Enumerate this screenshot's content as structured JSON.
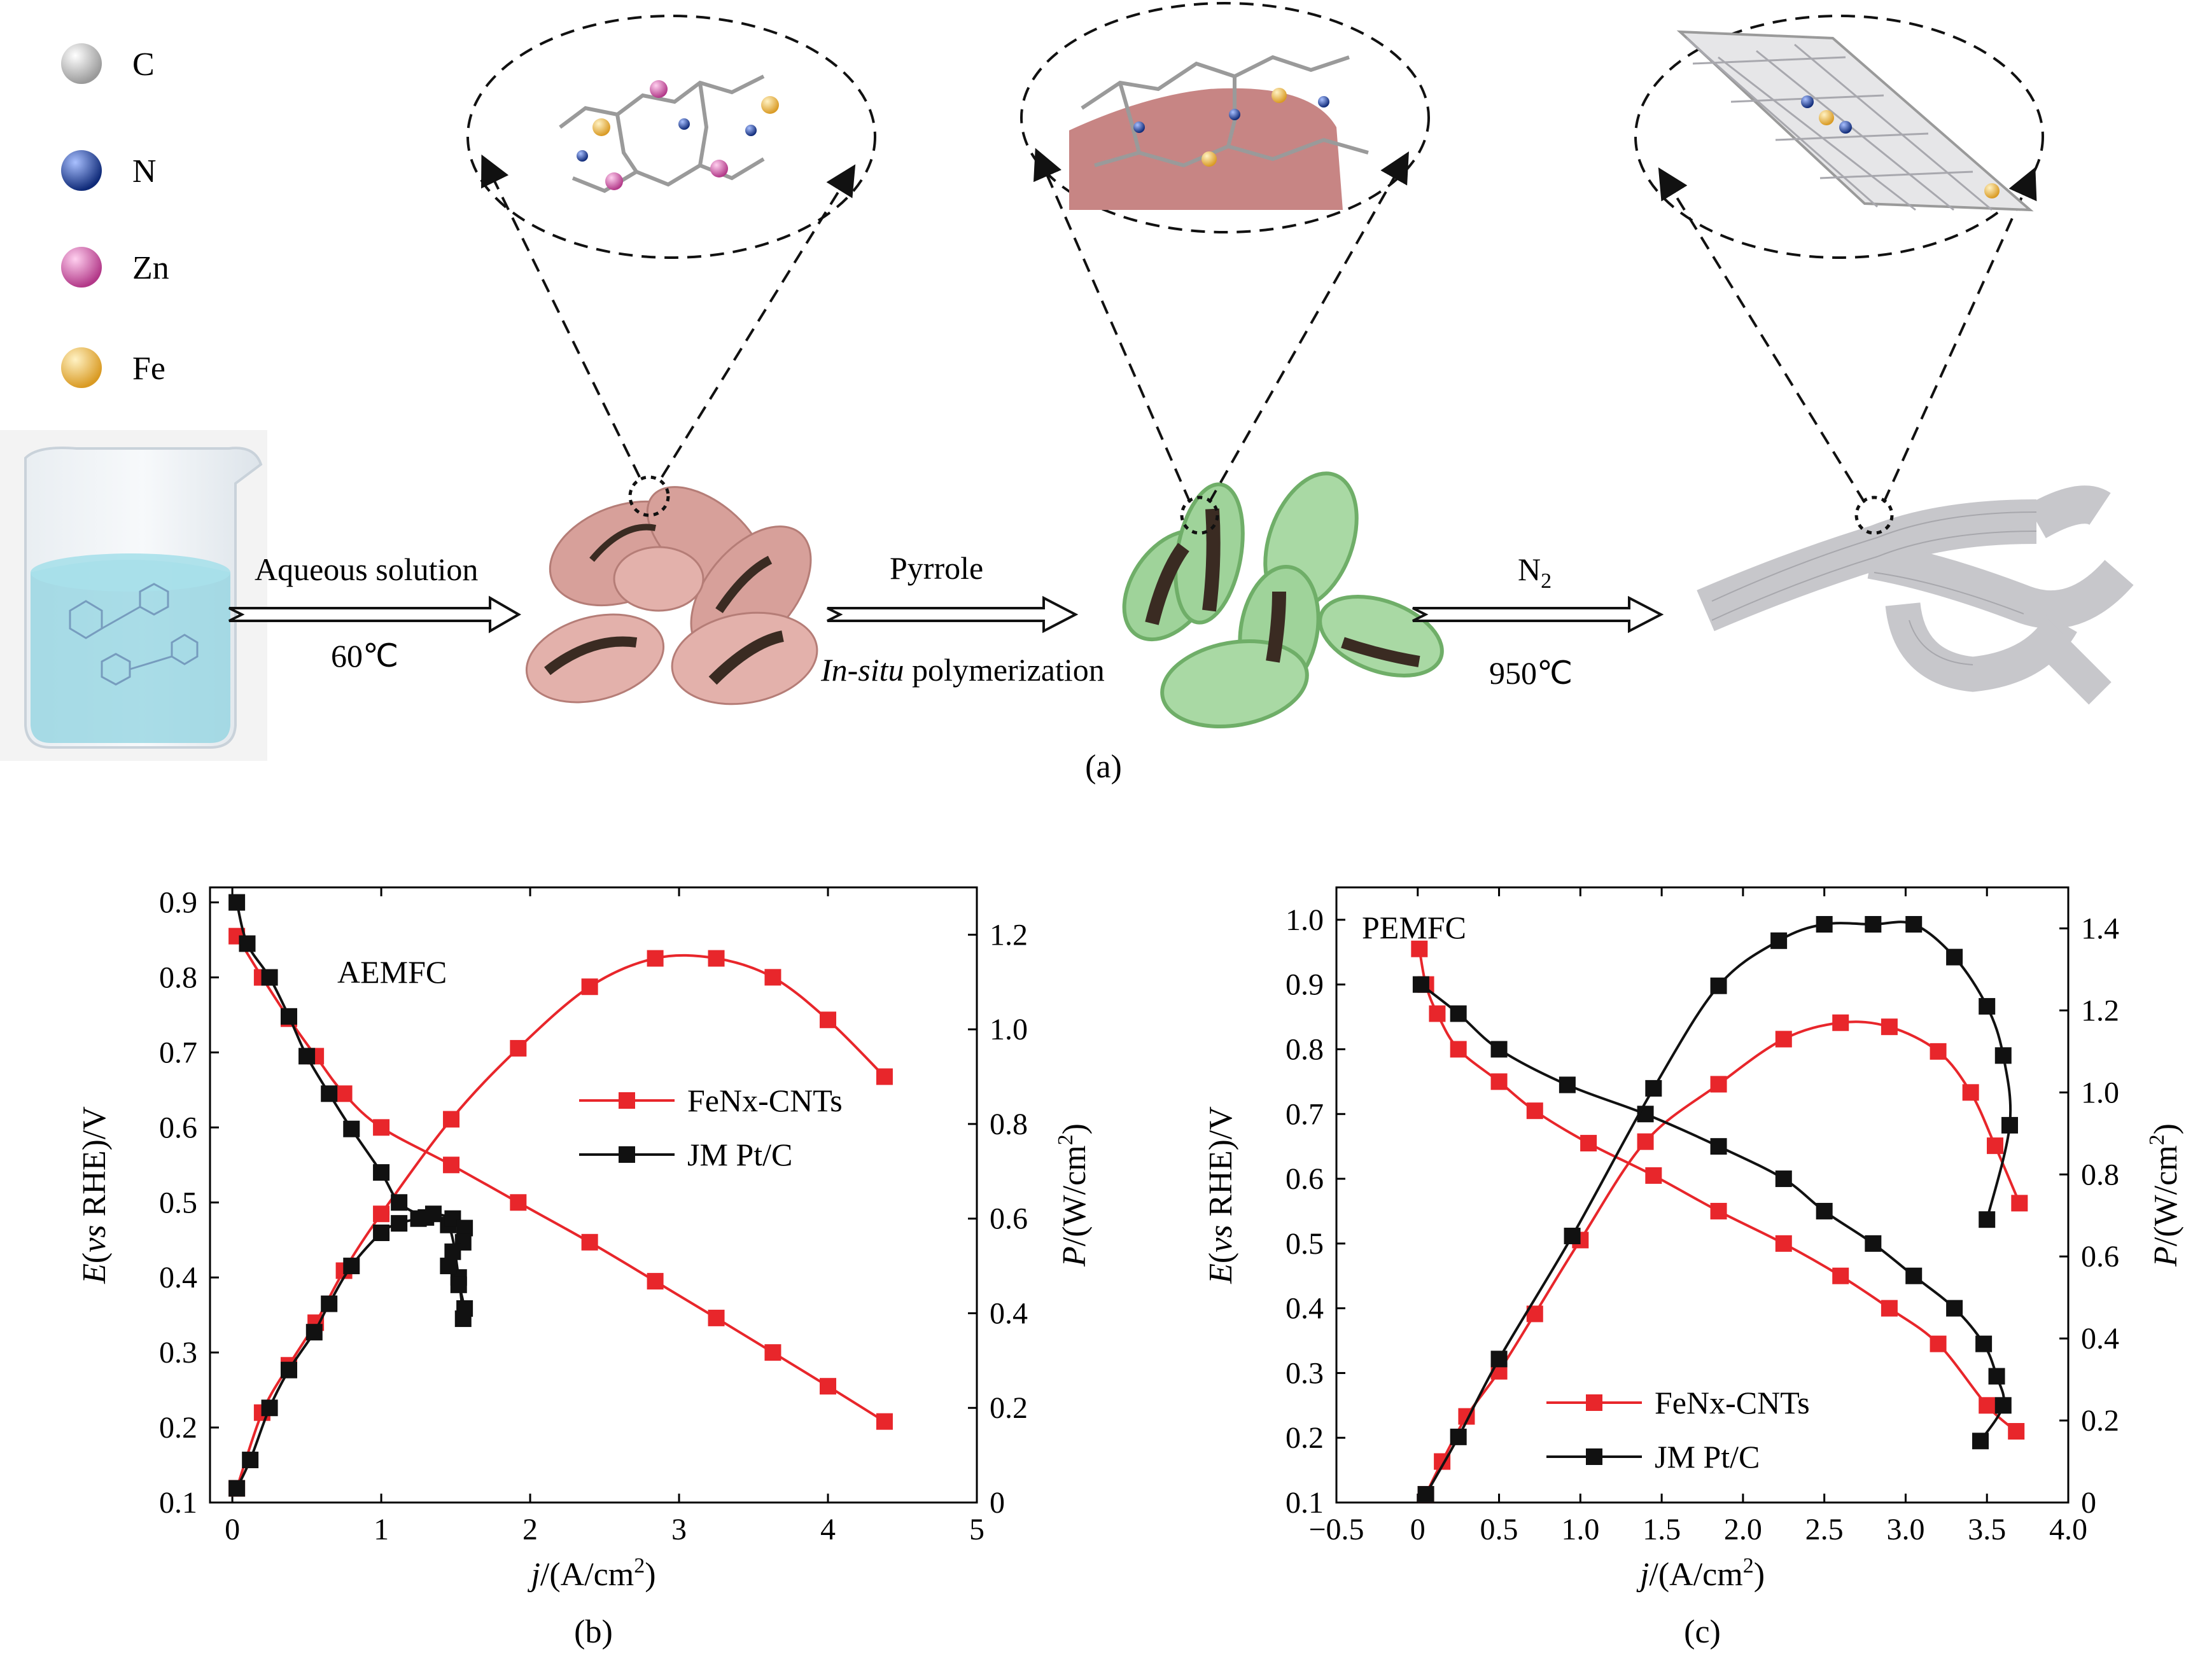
{
  "schematic": {
    "legend": [
      {
        "symbol": "C",
        "color": "#c8c8c8"
      },
      {
        "symbol": "N",
        "color": "#1f3a8a"
      },
      {
        "symbol": "Zn",
        "color": "#d0519f"
      },
      {
        "symbol": "Fe",
        "color": "#f2b544"
      }
    ],
    "step1": {
      "top": "Aqueous solution",
      "bottom": "60℃"
    },
    "step2": {
      "top": "Pyrrole",
      "bottom_italic": "In-situ",
      "bottom_rest": " polymerization"
    },
    "step3": {
      "top_base": "N",
      "top_sub": "2",
      "bottom": "950℃"
    },
    "panel_label": "(a)"
  },
  "colors": {
    "fenx": "#e8262b",
    "pt": "#111111",
    "particle": "#d7a09a",
    "particle_green": "#9fd39a",
    "liquid": "#8fd3e0"
  },
  "chart_data": [
    {
      "type": "line",
      "panel_label": "(b)",
      "annotation": "AEMFC",
      "xlabel_italic": "j",
      "xlabel_rest": "/(A/cm",
      "xlabel_sup": "2",
      "xlabel_end": ")",
      "ylabel_left_italic1": "E",
      "ylabel_left_mid": "(",
      "ylabel_left_italic2": "vs",
      "ylabel_left_rest": " RHE)/V",
      "ylabel_right_italic": "P",
      "ylabel_right_rest": "/(W/cm",
      "ylabel_right_sup": "2",
      "ylabel_right_end": ")",
      "xlim": [
        -0.15,
        5
      ],
      "xticks": [
        "0",
        "1",
        "2",
        "3",
        "4",
        "5"
      ],
      "ylim_left": [
        0.1,
        0.92
      ],
      "yticks_left": [
        "0.1",
        "0.2",
        "0.3",
        "0.4",
        "0.5",
        "0.6",
        "0.7",
        "0.8",
        "0.9"
      ],
      "ylim_right": [
        0,
        1.3
      ],
      "yticks_right": [
        "0",
        "0.2",
        "0.4",
        "0.6",
        "0.8",
        "1.0",
        "1.2"
      ],
      "legend_position": "center-right",
      "series": [
        {
          "name": "FeNx-CNTs",
          "axis": "left",
          "x": [
            0.03,
            0.2,
            0.38,
            0.56,
            0.75,
            1.0,
            1.47,
            1.92,
            2.4,
            2.84,
            3.25,
            3.63,
            4.0,
            4.38
          ],
          "y": [
            0.855,
            0.8,
            0.745,
            0.695,
            0.645,
            0.6,
            0.55,
            0.5,
            0.447,
            0.395,
            0.346,
            0.3,
            0.255,
            0.208
          ]
        },
        {
          "name": "FeNx-CNTs",
          "axis": "right",
          "x": [
            0.03,
            0.2,
            0.38,
            0.56,
            0.75,
            1.0,
            1.47,
            1.92,
            2.4,
            2.84,
            3.25,
            3.63,
            4.0,
            4.38
          ],
          "y": [
            0.03,
            0.19,
            0.29,
            0.38,
            0.49,
            0.61,
            0.81,
            0.96,
            1.09,
            1.15,
            1.15,
            1.11,
            1.02,
            0.9
          ]
        },
        {
          "name": "JM Pt/C",
          "axis": "left",
          "x": [
            0.03,
            0.1,
            0.25,
            0.38,
            0.5,
            0.65,
            0.8,
            1.0,
            1.12,
            1.3,
            1.45,
            1.52,
            1.55
          ],
          "y": [
            0.9,
            0.845,
            0.8,
            0.748,
            0.695,
            0.645,
            0.598,
            0.54,
            0.5,
            0.48,
            0.47,
            0.4,
            0.345
          ]
        },
        {
          "name": "JM Pt/C",
          "axis": "right",
          "x": [
            0.03,
            0.12,
            0.25,
            0.38,
            0.55,
            0.65,
            0.8,
            1.0,
            1.12,
            1.25,
            1.35,
            1.48,
            1.56,
            1.55,
            1.48,
            1.45,
            1.52,
            1.56
          ],
          "y": [
            0.03,
            0.09,
            0.2,
            0.28,
            0.36,
            0.42,
            0.5,
            0.57,
            0.59,
            0.6,
            0.61,
            0.6,
            0.58,
            0.55,
            0.53,
            0.5,
            0.46,
            0.41
          ]
        }
      ]
    },
    {
      "type": "line",
      "panel_label": "(c)",
      "annotation": "PEMFC",
      "xlabel_italic": "j",
      "xlabel_rest": "/(A/cm",
      "xlabel_sup": "2",
      "xlabel_end": ")",
      "ylabel_left_italic1": "E",
      "ylabel_left_mid": "(",
      "ylabel_left_italic2": "vs",
      "ylabel_left_rest": " RHE)/V",
      "ylabel_right_italic": "P",
      "ylabel_right_rest": "/(W/cm",
      "ylabel_right_sup": "2",
      "ylabel_right_end": ")",
      "xlim": [
        -0.5,
        4.0
      ],
      "xticks": [
        "−0.5",
        "0",
        "0.5",
        "1.0",
        "1.5",
        "2.0",
        "2.5",
        "3.0",
        "3.5",
        "4.0"
      ],
      "ylim_left": [
        0.1,
        1.05
      ],
      "yticks_left": [
        "0.1",
        "0.2",
        "0.3",
        "0.4",
        "0.5",
        "0.6",
        "0.7",
        "0.8",
        "0.9",
        "1.0"
      ],
      "ylim_right": [
        0,
        1.5
      ],
      "yticks_right": [
        "0",
        "0.2",
        "0.4",
        "0.6",
        "0.8",
        "1.0",
        "1.2",
        "1.4"
      ],
      "legend_position": "bottom-right",
      "series": [
        {
          "name": "FeNx-CNTs",
          "axis": "left",
          "x": [
            0.01,
            0.05,
            0.12,
            0.25,
            0.5,
            0.72,
            1.05,
            1.45,
            1.85,
            2.25,
            2.6,
            2.9,
            3.2,
            3.5,
            3.68
          ],
          "y": [
            0.955,
            0.9,
            0.855,
            0.8,
            0.75,
            0.705,
            0.655,
            0.605,
            0.55,
            0.5,
            0.45,
            0.4,
            0.345,
            0.25,
            0.21
          ]
        },
        {
          "name": "FeNx-CNTs",
          "axis": "right",
          "x": [
            0.05,
            0.15,
            0.3,
            0.5,
            0.72,
            1.0,
            1.4,
            1.85,
            2.25,
            2.6,
            2.9,
            3.2,
            3.4,
            3.55,
            3.7
          ],
          "y": [
            0.02,
            0.1,
            0.21,
            0.32,
            0.46,
            0.64,
            0.88,
            1.02,
            1.13,
            1.17,
            1.16,
            1.1,
            1.0,
            0.87,
            0.73
          ]
        },
        {
          "name": "JM Pt/C",
          "axis": "left",
          "x": [
            0.02,
            0.25,
            0.5,
            0.92,
            1.4,
            1.85,
            2.25,
            2.5,
            2.8,
            3.05,
            3.3,
            3.48,
            3.56,
            3.6,
            3.46
          ],
          "y": [
            0.9,
            0.855,
            0.8,
            0.745,
            0.7,
            0.65,
            0.6,
            0.55,
            0.5,
            0.45,
            0.4,
            0.345,
            0.295,
            0.25,
            0.195
          ]
        },
        {
          "name": "JM Pt/C",
          "axis": "right",
          "x": [
            0.05,
            0.25,
            0.5,
            0.95,
            1.45,
            1.85,
            2.22,
            2.5,
            2.8,
            3.05,
            3.3,
            3.5,
            3.6,
            3.64,
            3.5
          ],
          "y": [
            0.02,
            0.16,
            0.35,
            0.65,
            1.01,
            1.26,
            1.37,
            1.41,
            1.41,
            1.41,
            1.33,
            1.21,
            1.09,
            0.92,
            0.69
          ]
        }
      ]
    }
  ]
}
